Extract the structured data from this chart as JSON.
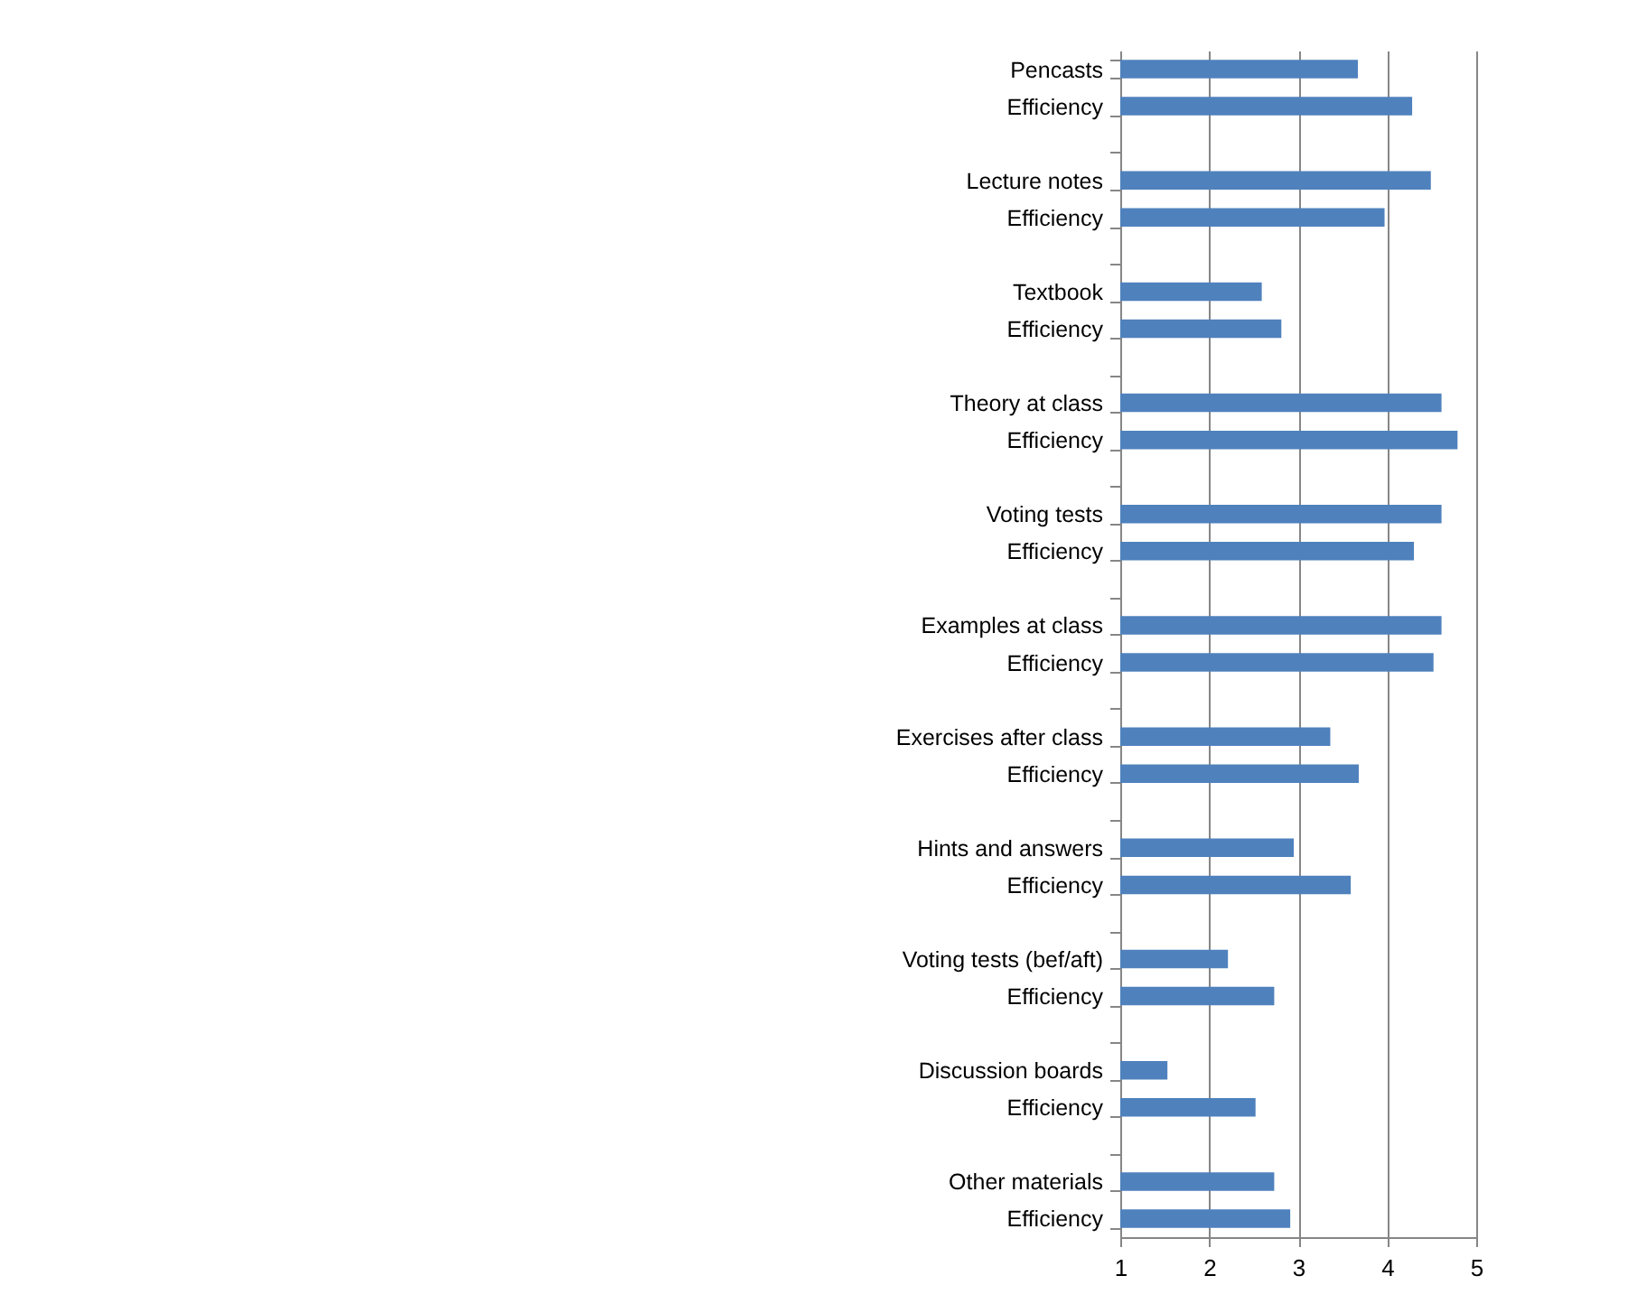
{
  "chart_data": {
    "type": "bar",
    "orientation": "horizontal",
    "categories": [
      "Pencasts",
      "Efficiency",
      null,
      "Lecture notes",
      "Efficiency",
      null,
      "Textbook",
      "Efficiency",
      null,
      "Theory at class",
      "Efficiency",
      null,
      "Voting tests",
      "Efficiency",
      null,
      "Examples at class",
      "Efficiency",
      null,
      "Exercises after class",
      "Efficiency",
      null,
      "Hints and answers",
      "Efficiency",
      null,
      "Voting tests (bef/aft)",
      "Efficiency",
      null,
      "Discussion boards",
      "Efficiency",
      null,
      "Other materials",
      "Efficiency"
    ],
    "values": [
      3.67,
      4.28,
      null,
      4.49,
      3.97,
      null,
      2.59,
      2.81,
      null,
      4.61,
      4.79,
      null,
      4.61,
      4.3,
      null,
      4.61,
      4.52,
      null,
      3.36,
      3.68,
      null,
      2.95,
      3.59,
      null,
      2.21,
      2.73,
      null,
      1.53,
      2.52,
      null,
      2.73,
      2.91
    ],
    "color": "#4f81bd",
    "xlim": [
      1,
      5
    ],
    "xticks": [
      1,
      2,
      3,
      4,
      5
    ],
    "grid": "x"
  }
}
